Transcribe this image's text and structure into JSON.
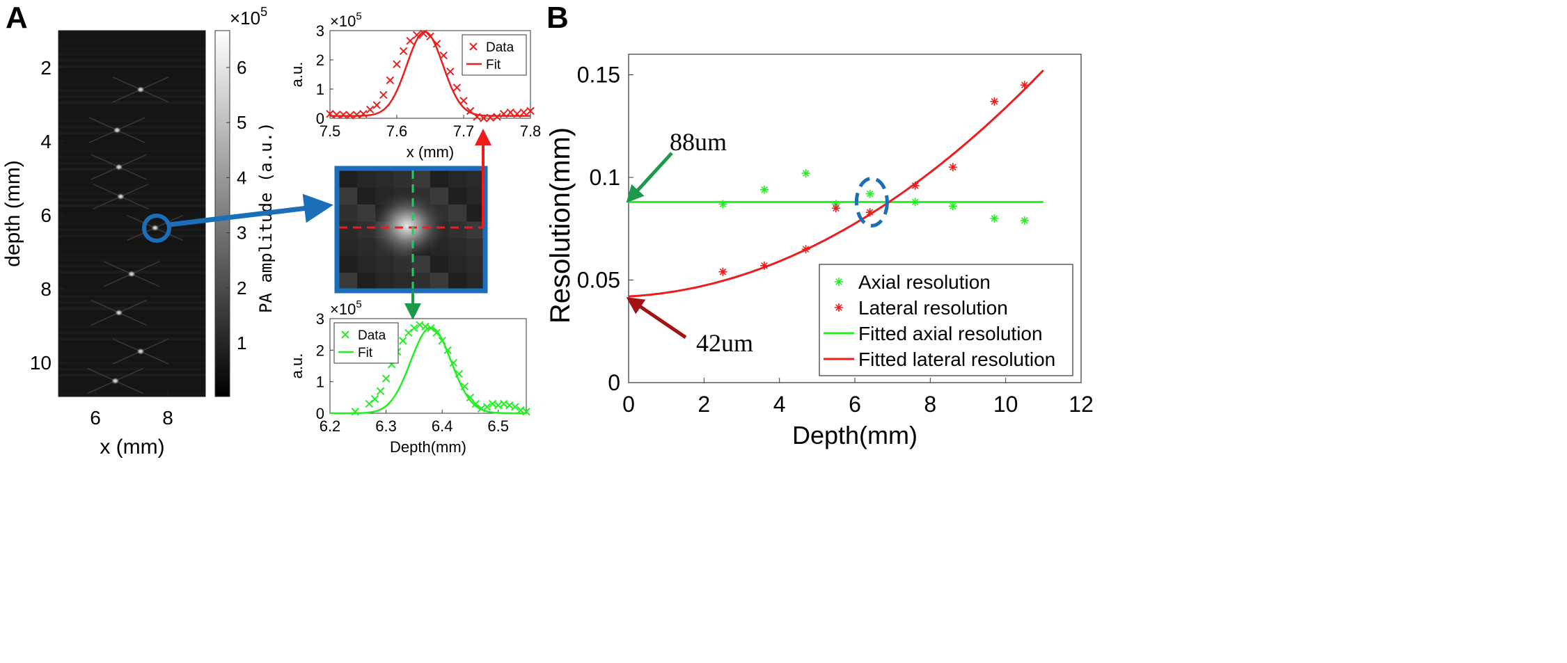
{
  "panel_labels": {
    "a": "A",
    "b": "B"
  },
  "colors": {
    "red": "#ee1c1c",
    "green": "#22ee22",
    "blue": "#1a6fb8",
    "dark_red": "#a31212",
    "dark_green": "#1a9a4a"
  },
  "image_panel": {
    "xlabel": "x (mm)",
    "ylabel": "depth (mm)",
    "xticks": [
      "6",
      "8"
    ],
    "yticks": [
      "2",
      "4",
      "6",
      "8",
      "10"
    ],
    "colorbar": {
      "label": "PA amplitude (a.u.)",
      "ticks": [
        "1",
        "2",
        "3",
        "4",
        "5",
        "6"
      ],
      "exponent": "×10",
      "exponent_power": "5"
    }
  },
  "chart_data": [
    {
      "name": "lateral-profile",
      "type": "line",
      "xlabel": "x (mm)",
      "ylabel": "a.u.",
      "xlim": [
        7.5,
        7.8
      ],
      "ylim": [
        0,
        3
      ],
      "xticks": [
        7.5,
        7.6,
        7.7,
        7.8
      ],
      "yticks": [
        0,
        1,
        2,
        3
      ],
      "exponent": "×10",
      "exponent_power": "5",
      "legend": [
        "Data",
        "Fit"
      ],
      "legend_position": "top-right",
      "series": [
        {
          "name": "Data",
          "marker": "x",
          "x": [
            7.5,
            7.51,
            7.52,
            7.53,
            7.54,
            7.55,
            7.56,
            7.57,
            7.58,
            7.59,
            7.6,
            7.61,
            7.62,
            7.63,
            7.64,
            7.65,
            7.66,
            7.67,
            7.68,
            7.69,
            7.7,
            7.71,
            7.72,
            7.73,
            7.74,
            7.75,
            7.76,
            7.77,
            7.78,
            7.79,
            7.8
          ],
          "y": [
            0.15,
            0.12,
            0.12,
            0.1,
            0.12,
            0.15,
            0.3,
            0.45,
            0.8,
            1.3,
            1.85,
            2.3,
            2.65,
            2.85,
            2.9,
            2.8,
            2.55,
            2.15,
            1.6,
            1.05,
            0.6,
            0.25,
            0.05,
            0.0,
            0.02,
            0.05,
            0.15,
            0.2,
            0.15,
            0.2,
            0.25
          ]
        },
        {
          "name": "Fit",
          "gaussian": {
            "amp": 2.88,
            "mu": 7.642,
            "sigma": 0.027,
            "base": 0.08
          }
        }
      ]
    },
    {
      "name": "axial-profile",
      "type": "line",
      "xlabel": "Depth(mm)",
      "ylabel": "a.u.",
      "xlim": [
        6.2,
        6.55
      ],
      "ylim": [
        0,
        3
      ],
      "xticks": [
        6.2,
        6.3,
        6.4,
        6.5
      ],
      "yticks": [
        0,
        1,
        2,
        3
      ],
      "exponent": "×10",
      "exponent_power": "5",
      "legend": [
        "Data",
        "Fit"
      ],
      "legend_position": "top-left",
      "series": [
        {
          "name": "Data",
          "marker": "x",
          "x": [
            6.245,
            6.27,
            6.28,
            6.29,
            6.3,
            6.31,
            6.32,
            6.33,
            6.34,
            6.35,
            6.36,
            6.37,
            6.38,
            6.39,
            6.4,
            6.41,
            6.42,
            6.43,
            6.44,
            6.45,
            6.46,
            6.47,
            6.48,
            6.49,
            6.5,
            6.51,
            6.52,
            6.53,
            6.54,
            6.55
          ],
          "y": [
            0.05,
            0.3,
            0.45,
            0.7,
            1.1,
            1.55,
            1.95,
            2.3,
            2.55,
            2.7,
            2.8,
            2.75,
            2.7,
            2.55,
            2.3,
            2.0,
            1.6,
            1.25,
            0.85,
            0.5,
            0.3,
            0.15,
            0.2,
            0.3,
            0.25,
            0.3,
            0.25,
            0.2,
            0.1,
            0.05
          ]
        },
        {
          "name": "Fit",
          "gaussian": {
            "amp": 2.72,
            "mu": 6.38,
            "sigma": 0.036,
            "base": 0.0
          }
        }
      ]
    },
    {
      "name": "resolution-vs-depth",
      "type": "scatter",
      "xlabel": "Depth(mm)",
      "ylabel": "Resolution(mm)",
      "xlim": [
        0,
        12
      ],
      "ylim": [
        0,
        0.16
      ],
      "xticks": [
        0,
        2,
        4,
        6,
        8,
        10,
        12
      ],
      "yticks": [
        0,
        0.05,
        0.1,
        0.15
      ],
      "ytick_labels": [
        "0",
        "0.05",
        "0.1",
        "0.15"
      ],
      "legend_position": "bottom-right",
      "series": [
        {
          "name": "Axial resolution",
          "marker": "*",
          "color": "#22ee22",
          "x": [
            2.5,
            3.6,
            4.7,
            5.5,
            6.4,
            7.6,
            8.6,
            9.7,
            10.5
          ],
          "y": [
            0.087,
            0.094,
            0.102,
            0.087,
            0.092,
            0.088,
            0.086,
            0.08,
            0.079
          ]
        },
        {
          "name": "Lateral resolution",
          "marker": "*",
          "color": "#ee1c1c",
          "x": [
            2.5,
            3.6,
            4.7,
            5.5,
            6.4,
            7.6,
            8.6,
            9.7,
            10.5
          ],
          "y": [
            0.054,
            0.057,
            0.065,
            0.085,
            0.083,
            0.096,
            0.105,
            0.137,
            0.145
          ]
        },
        {
          "name": "Fitted axial resolution",
          "line": "constant",
          "color": "#22ee22",
          "y": 0.088,
          "x_range": [
            0,
            11
          ]
        },
        {
          "name": "Fitted lateral resolution",
          "line": "quadratic",
          "color": "#ee1c1c",
          "coef": [
            0.042,
            0.001,
            0.00082
          ],
          "x_range": [
            0,
            11
          ]
        }
      ],
      "annotations": [
        {
          "text": "88um",
          "target_y": 0.088,
          "color": "#1a9a4a"
        },
        {
          "text": "42um",
          "target_y": 0.042,
          "color": "#a31212"
        }
      ],
      "highlight": "intersection of fitted curves"
    }
  ]
}
